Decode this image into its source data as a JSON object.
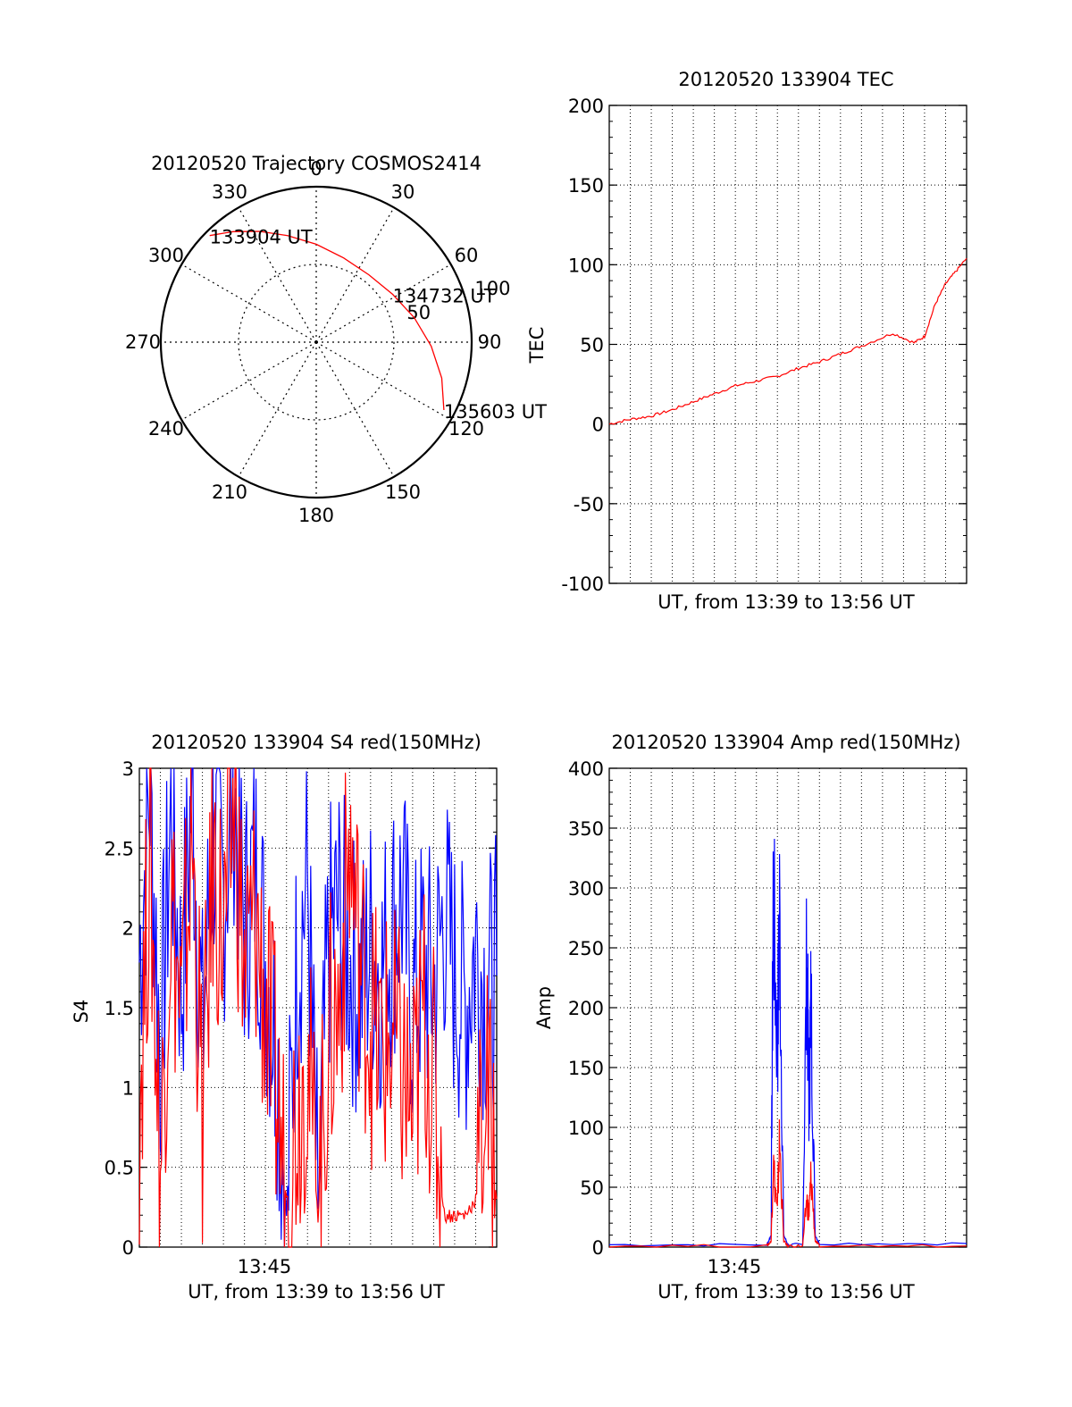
{
  "chart_data": [
    {
      "type": "polar",
      "title": "20120520 Trajectory COSMOS2414",
      "azimuth_labels": [
        "0",
        "30",
        "60",
        "90",
        "120",
        "150",
        "180",
        "210",
        "240",
        "270",
        "300",
        "330"
      ],
      "radial_labels": [
        "50",
        "100"
      ],
      "radial_range": [
        0,
        100
      ],
      "grid": true,
      "series": [
        {
          "color": "#ff0000",
          "points": [
            {
              "az": 315,
              "r": 97
            },
            {
              "az": 323,
              "r": 89
            },
            {
              "az": 333,
              "r": 80
            },
            {
              "az": 345,
              "r": 71
            },
            {
              "az": 0,
              "r": 63
            },
            {
              "az": 18,
              "r": 57
            },
            {
              "az": 38,
              "r": 55
            },
            {
              "az": 58,
              "r": 58
            },
            {
              "az": 76,
              "r": 65
            },
            {
              "az": 92,
              "r": 74
            },
            {
              "az": 106,
              "r": 84
            },
            {
              "az": 118,
              "r": 93
            }
          ]
        }
      ],
      "annotations": [
        {
          "text": "133904 UT",
          "az": 315,
          "r": 97
        },
        {
          "text": "134732 UT",
          "az": 58,
          "r": 58
        },
        {
          "text": "135603 UT",
          "az": 118,
          "r": 93
        }
      ]
    },
    {
      "type": "line",
      "title": "20120520 133904 TEC",
      "xlabel": "UT, from 13:39 to 13:56 UT",
      "ylabel": "TEC",
      "xlim": [
        0,
        17
      ],
      "ylim": [
        -100,
        200
      ],
      "yticks": [
        "200",
        "150",
        "100",
        "50",
        "0",
        "-50",
        "-100"
      ],
      "grid": true,
      "series": [
        {
          "color": "#ff0000",
          "x": [
            0,
            1,
            2,
            3,
            4,
            5,
            6,
            7,
            8,
            9,
            10,
            11,
            12,
            13.5,
            14.5,
            15,
            15.5,
            16,
            16.5,
            17
          ],
          "y": [
            0,
            3,
            5,
            9,
            14,
            19,
            24,
            27,
            30,
            35,
            39,
            44,
            49,
            57,
            51,
            55,
            75,
            88,
            96,
            104
          ]
        }
      ]
    },
    {
      "type": "line",
      "title": "20120520 133904 S4 red(150MHz)",
      "xlabel": "UT, from 13:39 to 13:56 UT",
      "ylabel": "S4",
      "xlim": [
        0,
        17
      ],
      "ylim": [
        0,
        3
      ],
      "xticks": [
        "13:45"
      ],
      "yticks": [
        "3",
        "2.5",
        "2",
        "1.5",
        "1",
        "0.5",
        "0"
      ],
      "grid": true,
      "series": [
        {
          "color": "#0000ff",
          "x": [
            0,
            0.5,
            1,
            1.5,
            2,
            2.5,
            3,
            3.5,
            4,
            4.5,
            5,
            5.5,
            6,
            6.5,
            7,
            7.5,
            8,
            8.5,
            9,
            9.5,
            10,
            10.5,
            11,
            11.5,
            12,
            12.5,
            13,
            13.5,
            14,
            14.5,
            15,
            15.5,
            16,
            16.5,
            17
          ],
          "y": [
            1.8,
            2.9,
            1.2,
            2.7,
            1.6,
            2.9,
            1.3,
            2.6,
            2.2,
            2.9,
            2.0,
            2.4,
            1.8,
            1.3,
            0.2,
            1.8,
            2.3,
            0.2,
            1.9,
            2.1,
            1.8,
            1.6,
            1.9,
            1.7,
            2.0,
            2.2,
            1.5,
            1.8,
            1.6,
            2.1,
            1.7,
            1.5,
            1.9,
            1.6,
            1.7
          ]
        },
        {
          "color": "#ff0000",
          "x": [
            0,
            0.5,
            1,
            1.5,
            2,
            2.5,
            3,
            3.5,
            4,
            4.5,
            5,
            5.5,
            6,
            6.5,
            7,
            7.5,
            8,
            8.5,
            9,
            9.5,
            10,
            10.5,
            11,
            11.5,
            12,
            12.5,
            13,
            13.5,
            14,
            14.5,
            15,
            15.5,
            16,
            16.5,
            17
          ],
          "y": [
            0.9,
            2.5,
            0.5,
            2.2,
            1.4,
            2.6,
            0.8,
            2.4,
            1.9,
            2.8,
            1.7,
            2.1,
            1.5,
            1.0,
            0.3,
            0.9,
            1.2,
            0.2,
            1.3,
            1.5,
            2.5,
            1.8,
            1.4,
            1.2,
            1.3,
            1.1,
            0.8,
            1.5,
            1.0,
            0.2,
            0.2,
            0.2,
            0.3,
            1.0,
            0.3
          ]
        }
      ]
    },
    {
      "type": "line",
      "title": "20120520 133904 Amp red(150MHz)",
      "xlabel": "UT, from 13:39 to 13:56 UT",
      "ylabel": "Amp",
      "xlim": [
        0,
        17
      ],
      "ylim": [
        0,
        400
      ],
      "xticks": [
        "13:45"
      ],
      "yticks": [
        "400",
        "350",
        "300",
        "250",
        "200",
        "150",
        "100",
        "50",
        "0"
      ],
      "grid": true,
      "series": [
        {
          "color": "#0000ff",
          "x": [
            0,
            7.5,
            7.7,
            7.8,
            8.0,
            8.1,
            8.3,
            8.5,
            9.2,
            9.4,
            9.5,
            9.6,
            9.8,
            10.0,
            17
          ],
          "y": [
            2,
            2,
            10,
            295,
            160,
            278,
            10,
            2,
            2,
            245,
            120,
            205,
            10,
            3,
            3
          ]
        },
        {
          "color": "#ff0000",
          "x": [
            0,
            7.5,
            7.7,
            7.8,
            8.0,
            8.1,
            8.3,
            8.5,
            9.2,
            9.4,
            9.5,
            9.6,
            9.8,
            10.0,
            17
          ],
          "y": [
            1,
            1,
            5,
            70,
            30,
            90,
            5,
            1,
            1,
            40,
            25,
            60,
            5,
            1,
            1
          ]
        }
      ]
    }
  ]
}
